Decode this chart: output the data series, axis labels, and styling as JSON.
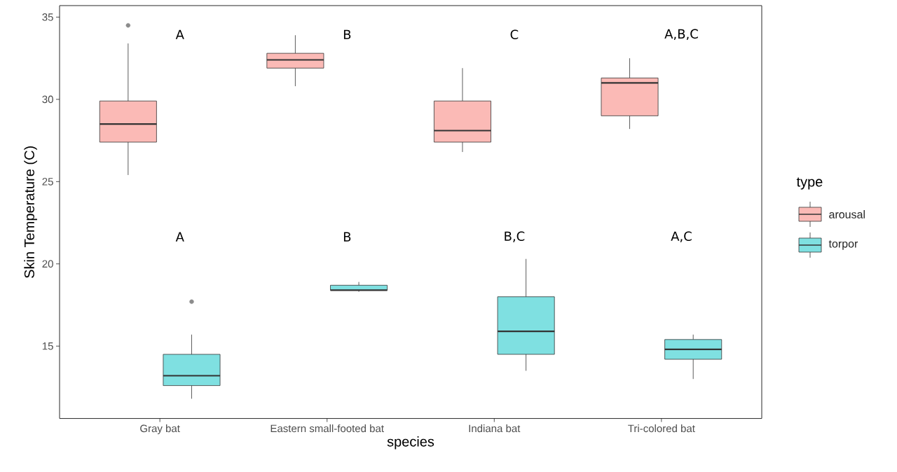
{
  "chart_data": {
    "type": "box",
    "xlabel": "species",
    "ylabel": "Skin Temperature (C)",
    "legend_title": "type",
    "categories": [
      "Gray bat",
      "Eastern small-footed bat",
      "Indiana bat",
      "Tri-colored bat"
    ],
    "series": [
      {
        "name": "arousal",
        "color": "#fbbab6",
        "boxes": [
          {
            "low": 25.4,
            "q1": 27.4,
            "median": 28.5,
            "q3": 29.9,
            "high": 33.4,
            "outliers": [
              34.5
            ]
          },
          {
            "low": 30.8,
            "q1": 31.9,
            "median": 32.4,
            "q3": 32.8,
            "high": 33.9
          },
          {
            "low": 26.8,
            "q1": 27.4,
            "median": 28.1,
            "q3": 29.9,
            "high": 31.9
          },
          {
            "low": 28.2,
            "q1": 29.0,
            "median": 31.0,
            "q3": 31.3,
            "high": 32.5
          }
        ]
      },
      {
        "name": "torpor",
        "color": "#7fe0e1",
        "boxes": [
          {
            "low": 11.8,
            "q1": 12.6,
            "median": 13.2,
            "q3": 14.5,
            "high": 15.7,
            "outliers": [
              17.7
            ]
          },
          {
            "low": 18.3,
            "q1": 18.4,
            "median": 18.4,
            "q3": 18.7,
            "high": 18.9
          },
          {
            "low": 13.5,
            "q1": 14.5,
            "median": 15.9,
            "q3": 18.0,
            "high": 20.3
          },
          {
            "low": 13.0,
            "q1": 14.2,
            "median": 14.8,
            "q3": 15.4,
            "high": 15.7
          }
        ]
      }
    ],
    "annotations": [
      "A",
      "B",
      "C",
      "A,B,C",
      "A",
      "B",
      "B,C",
      "A,C"
    ],
    "ylim": [
      10.6,
      35.7
    ],
    "yticks": [
      15,
      20,
      25,
      30,
      35
    ],
    "grid": false,
    "legend": "right"
  }
}
